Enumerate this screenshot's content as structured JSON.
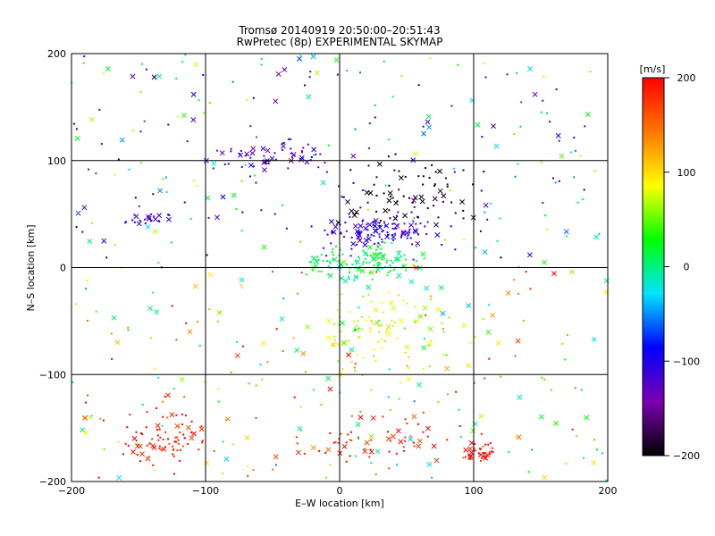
{
  "chart_data": {
    "type": "scatter",
    "title": "Tromsø 20140919 20:50:00–20:51:43",
    "subtitle": "RwPretec (8p) EXPERIMENTAL SKYMAP",
    "xlabel": "E–W location [km]",
    "ylabel": "N–S location [km]",
    "xlim": [
      -200,
      200
    ],
    "ylim": [
      -200,
      200
    ],
    "x_ticks": [
      "−200",
      "−100",
      "0",
      "100",
      "200"
    ],
    "y_ticks": [
      "200",
      "100",
      "0",
      "−100",
      "−200"
    ],
    "grid": true,
    "colorbar": {
      "unit": "[m/s]",
      "range": [
        -200,
        200
      ],
      "ticks": [
        "200",
        "100",
        "0",
        "−100",
        "−200"
      ],
      "scale": [
        "#000000",
        "#7a00b0",
        "#0000ff",
        "#00e5ff",
        "#00ff00",
        "#ffff00",
        "#ff7700",
        "#ff0000"
      ]
    },
    "clusters": [
      {
        "x": 25,
        "y": -160,
        "vel": 185,
        "n": 60,
        "spread": [
          55,
          22
        ]
      },
      {
        "x": 105,
        "y": -172,
        "vel": 195,
        "n": 35,
        "spread": [
          12,
          10
        ]
      },
      {
        "x": -130,
        "y": -160,
        "vel": 190,
        "n": 80,
        "spread": [
          25,
          22
        ]
      },
      {
        "x": 30,
        "y": -60,
        "vel": 80,
        "n": 110,
        "spread": [
          50,
          35
        ]
      },
      {
        "x": 30,
        "y": 35,
        "vel": -110,
        "n": 110,
        "spread": [
          35,
          12
        ]
      },
      {
        "x": 20,
        "y": 5,
        "vel": 10,
        "n": 130,
        "spread": [
          35,
          14
        ]
      },
      {
        "x": 50,
        "y": 70,
        "vel": -200,
        "n": 70,
        "spread": [
          40,
          25
        ]
      },
      {
        "x": -50,
        "y": 105,
        "vel": -120,
        "n": 60,
        "spread": [
          40,
          12
        ]
      },
      {
        "x": -140,
        "y": 45,
        "vel": -110,
        "n": 25,
        "spread": [
          15,
          6
        ]
      },
      {
        "x": 0,
        "y": 0,
        "vel": 60,
        "n": 450,
        "spread": [
          200,
          200
        ]
      }
    ]
  }
}
